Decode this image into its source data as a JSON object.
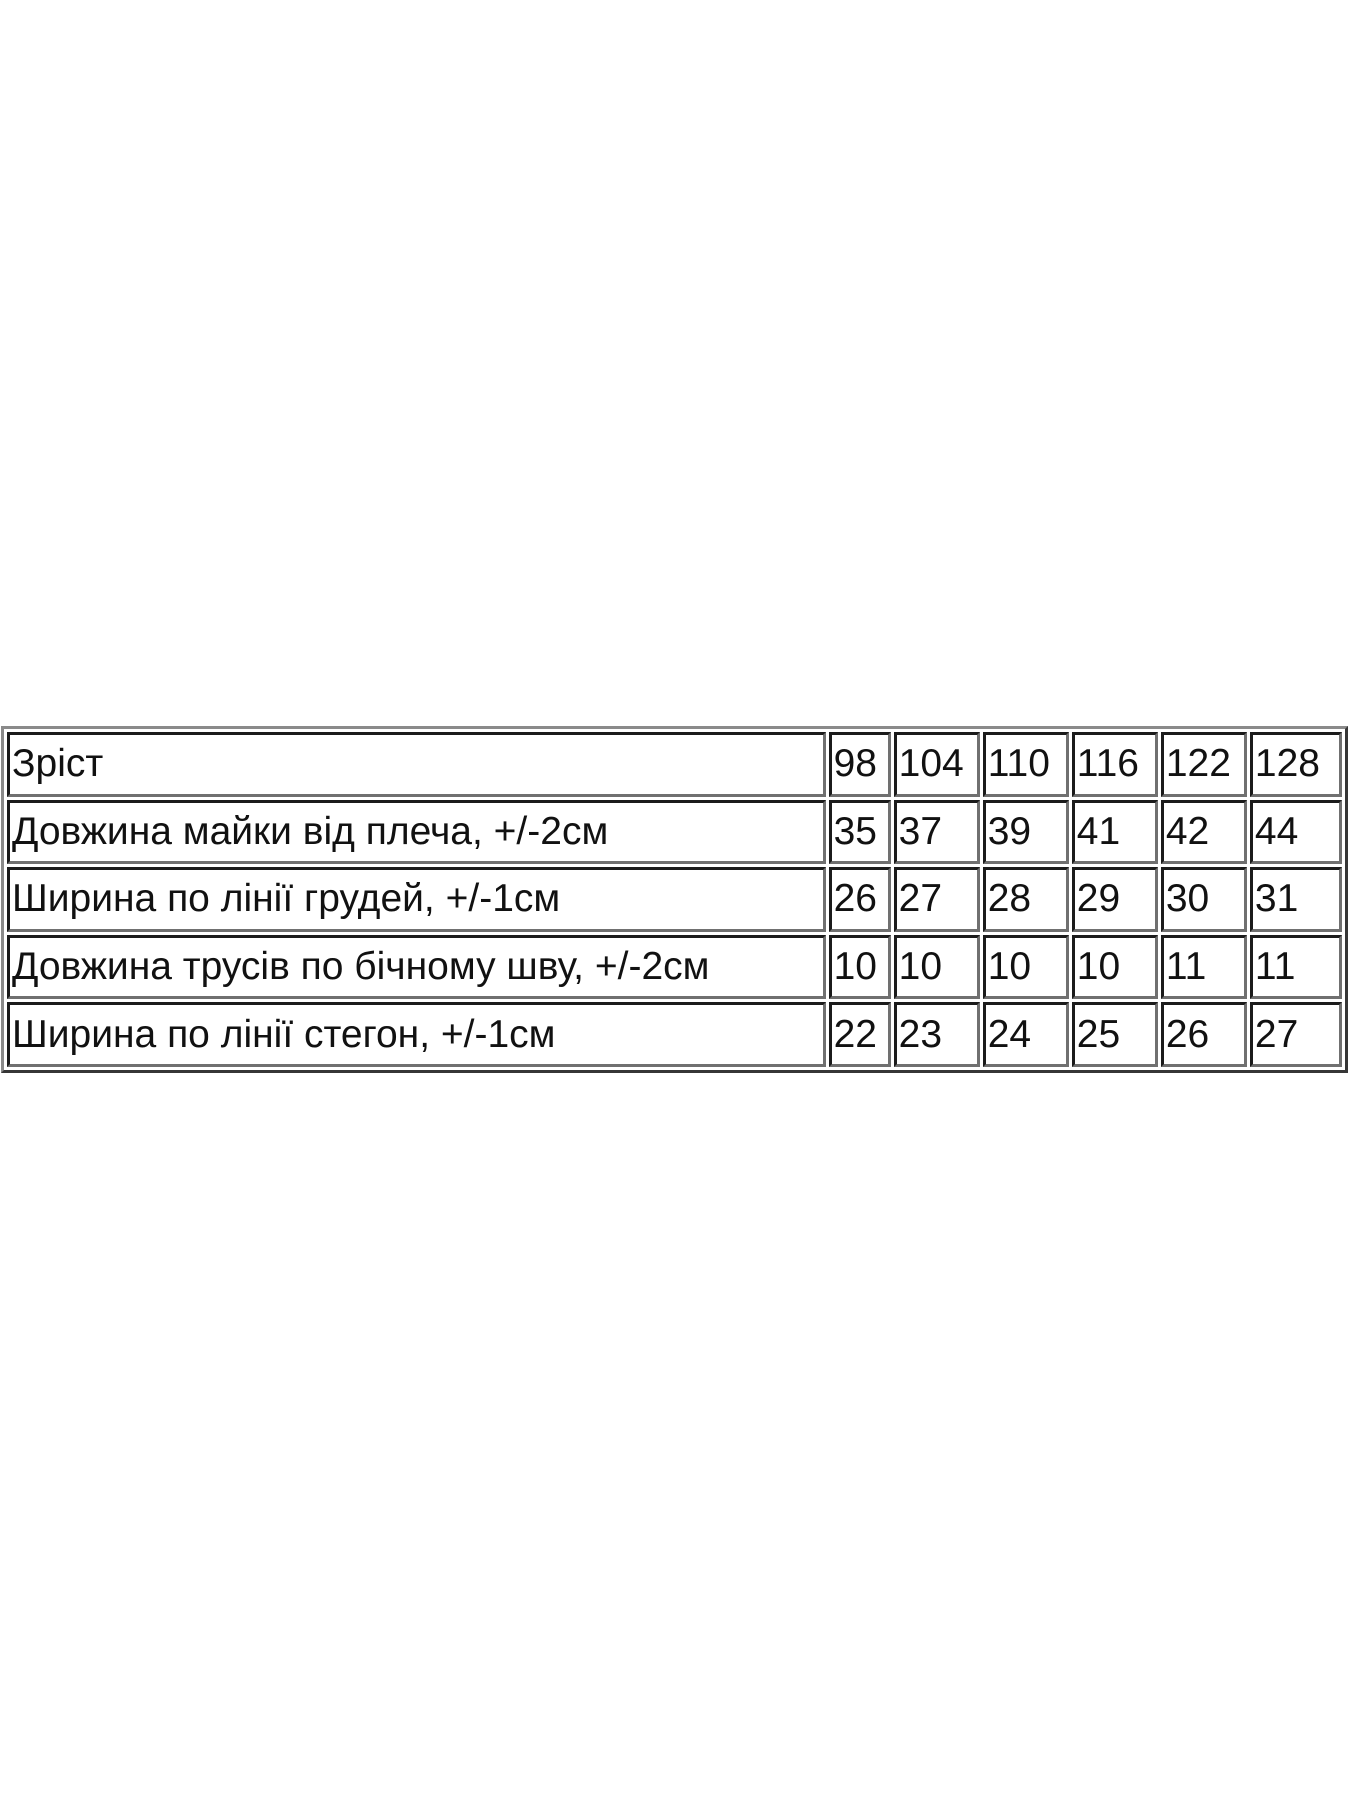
{
  "table": {
    "header": {
      "label": "Зріст",
      "values": [
        "98",
        "104",
        "110",
        "116",
        "122",
        "128"
      ]
    },
    "rows": [
      {
        "label": "Довжина майки від плеча, +/-2см",
        "values": [
          "35",
          "37",
          "39",
          "41",
          "42",
          "44"
        ]
      },
      {
        "label": "Ширина по лінії грудей, +/-1см",
        "values": [
          "26",
          "27",
          "28",
          "29",
          "30",
          "31"
        ]
      },
      {
        "label": "Довжина трусів по бічному шву, +/-2см",
        "values": [
          "10",
          "10",
          "10",
          "10",
          "11",
          "11"
        ]
      },
      {
        "label": "Ширина по лінії стегон, +/-1см",
        "values": [
          "22",
          "23",
          "24",
          "25",
          "26",
          "27"
        ]
      }
    ]
  }
}
